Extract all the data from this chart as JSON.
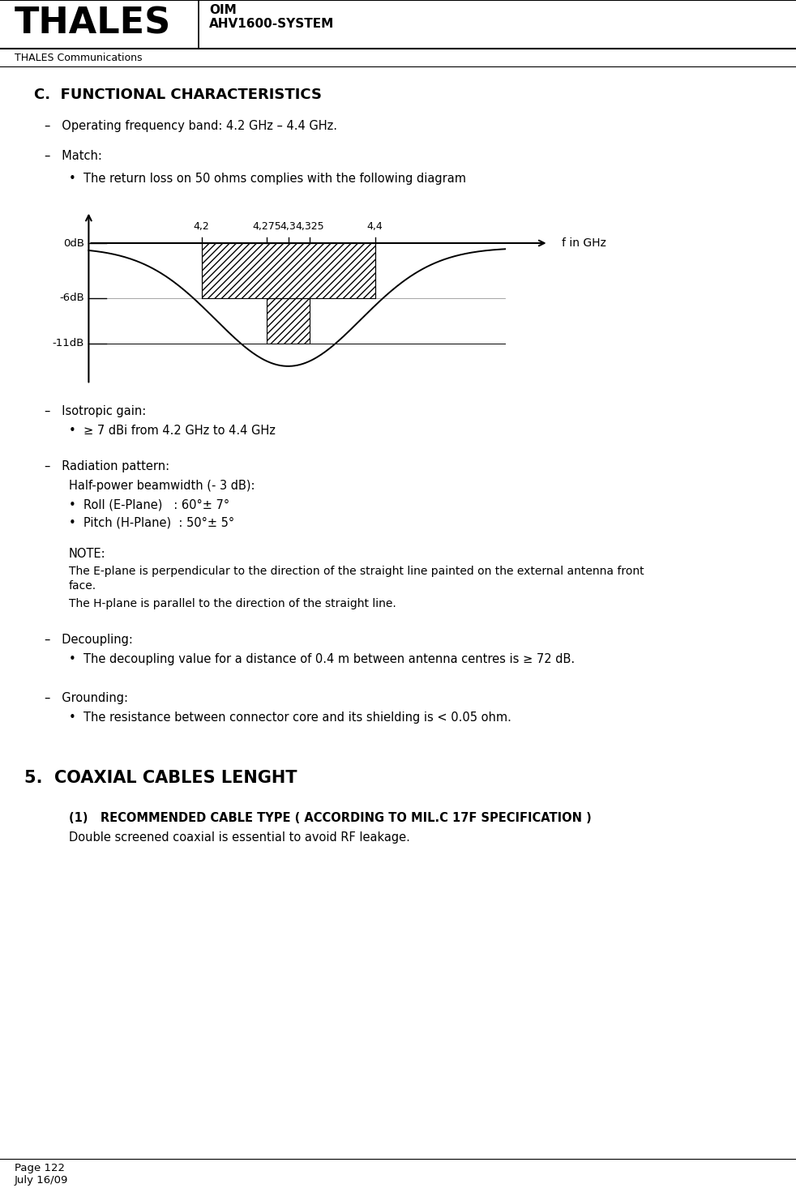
{
  "header_logo": "THALES",
  "header_doc": "OIM\nAHV1600-SYSTEM",
  "header_company": "THALES Communications",
  "section_c_title": "C.  FUNCTIONAL CHARACTERISTICS",
  "item_freq": "–   Operating frequency band: 4.2 GHz – 4.4 GHz.",
  "item_match": "–   Match:",
  "bullet_match": "The return loss on 50 ohms complies with the following diagram",
  "diagram_ylabel_0dB": "0dB",
  "diagram_ylabel_6dB": "-6dB",
  "diagram_ylabel_11dB": "-11dB",
  "diagram_xlabel": "f in GHz",
  "diagram_xticks": [
    "4,2",
    "4,275",
    "4,3",
    "4,325",
    "4,4"
  ],
  "diagram_xtick_vals": [
    4.2,
    4.275,
    4.3,
    4.325,
    4.4
  ],
  "item_gain": "–   Isotropic gain:",
  "bullet_gain": "≥ 7 dBi from 4.2 GHz to 4.4 GHz",
  "item_radiation": "–   Radiation pattern:",
  "text_beamwidth": "Half-power beamwidth (- 3 dB):",
  "bullet_roll": "Roll (E-Plane)   : 60°± 7°",
  "bullet_pitch": "Pitch (H-Plane)  : 50°± 5°",
  "note_label": "NOTE:",
  "note_text1": "The E-plane is perpendicular to the direction of the straight line painted on the external antenna front",
  "note_text1b": "face.",
  "note_text2": "The H-plane is parallel to the direction of the straight line.",
  "item_decoupling": "–   Decoupling:",
  "bullet_decoupling": "The decoupling value for a distance of 0.4 m between antenna centres is ≥ 72 dB.",
  "item_grounding": "–   Grounding:",
  "bullet_grounding": "The resistance between connector core and its shielding is < 0.05 ohm.",
  "section5_title": "5.  COAXIAL CABLES LENGHT",
  "subsection1_title": "(1)   RECOMMENDED CABLE TYPE ( ACCORDING TO MIL.C 17F SPECIFICATION )",
  "subsection1_text": "Double screened coaxial is essential to avoid RF leakage.",
  "footer_page": "Page 122",
  "footer_date": "July 16/09",
  "bg_color": "#ffffff",
  "text_color": "#000000"
}
